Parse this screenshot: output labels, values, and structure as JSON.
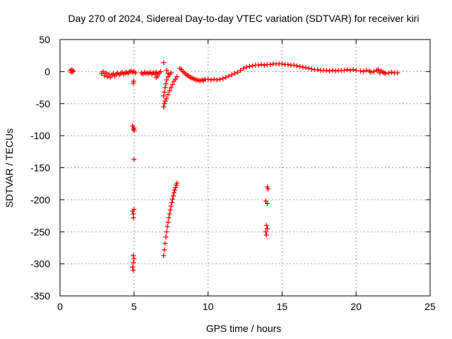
{
  "chart_data": {
    "type": "scatter",
    "title": "Day 270 of 2024, Sidereal Day-to-day VTEC variation (SDTVAR) for receiver kiri",
    "xlabel": "GPS time / hours",
    "ylabel": "SDTVAR / TECUs",
    "xlim": [
      0,
      25
    ],
    "ylim": [
      -350,
      50
    ],
    "xticks": [
      0,
      5,
      10,
      15,
      20,
      25
    ],
    "yticks": [
      50,
      0,
      -50,
      -100,
      -150,
      -200,
      -250,
      -300,
      -350
    ],
    "xtick_labels": [
      "0",
      "5",
      "10",
      "15",
      "20",
      "25"
    ],
    "ytick_labels": [
      "50",
      "0",
      "-50",
      "-100",
      "-150",
      "-200",
      "-250",
      "-300",
      "-350"
    ],
    "grid": true,
    "marker": "+",
    "color": "#ff0000",
    "series": [
      {
        "name": "SDTVAR",
        "points": [
          [
            0.7,
            2
          ],
          [
            0.75,
            -1
          ],
          [
            0.8,
            3
          ],
          [
            0.85,
            0
          ],
          [
            0.9,
            1
          ],
          [
            2.8,
            -3
          ],
          [
            2.9,
            0
          ],
          [
            3.0,
            -6
          ],
          [
            3.1,
            -2
          ],
          [
            3.2,
            -8
          ],
          [
            3.3,
            -4
          ],
          [
            3.4,
            -9
          ],
          [
            3.5,
            -5
          ],
          [
            3.6,
            -3
          ],
          [
            3.7,
            -7
          ],
          [
            3.8,
            -4
          ],
          [
            3.9,
            -2
          ],
          [
            4.0,
            -5
          ],
          [
            4.1,
            -3
          ],
          [
            4.2,
            -1
          ],
          [
            4.3,
            -4
          ],
          [
            4.4,
            -2
          ],
          [
            4.5,
            -1
          ],
          [
            4.6,
            -3
          ],
          [
            4.7,
            0
          ],
          [
            4.8,
            1
          ],
          [
            4.9,
            -1
          ],
          [
            5.0,
            0
          ],
          [
            5.1,
            -2
          ],
          [
            4.95,
            -18
          ],
          [
            4.98,
            -15
          ],
          [
            4.9,
            -85
          ],
          [
            4.95,
            -90
          ],
          [
            5.0,
            -88
          ],
          [
            5.02,
            -92
          ],
          [
            5.0,
            -137
          ],
          [
            4.9,
            -218
          ],
          [
            4.95,
            -222
          ],
          [
            5.0,
            -215
          ],
          [
            4.95,
            -228
          ],
          [
            4.95,
            -287
          ],
          [
            5.0,
            -292
          ],
          [
            4.95,
            -298
          ],
          [
            4.9,
            -305
          ],
          [
            4.95,
            -310
          ],
          [
            5.5,
            -2
          ],
          [
            5.6,
            -4
          ],
          [
            5.7,
            -1
          ],
          [
            5.8,
            -3
          ],
          [
            5.9,
            -2
          ],
          [
            6.0,
            -3
          ],
          [
            6.1,
            -1
          ],
          [
            6.2,
            -4
          ],
          [
            6.3,
            -2
          ],
          [
            6.4,
            -3
          ],
          [
            6.5,
            -1
          ],
          [
            6.6,
            -4
          ],
          [
            6.7,
            -2
          ],
          [
            6.8,
            0
          ],
          [
            6.5,
            -9
          ],
          [
            6.6,
            -7
          ],
          [
            7.0,
            14
          ],
          [
            7.2,
            2
          ],
          [
            7.3,
            -3
          ],
          [
            7.0,
            -38
          ],
          [
            7.05,
            -32
          ],
          [
            7.1,
            -25
          ],
          [
            7.15,
            -19
          ],
          [
            7.2,
            -13
          ],
          [
            7.3,
            -8
          ],
          [
            7.4,
            -5
          ],
          [
            7.5,
            -2
          ],
          [
            7.0,
            -55
          ],
          [
            7.05,
            -50
          ],
          [
            7.1,
            -46
          ],
          [
            7.2,
            -42
          ],
          [
            7.3,
            -36
          ],
          [
            7.4,
            -30
          ],
          [
            7.5,
            -25
          ],
          [
            7.6,
            -20
          ],
          [
            7.7,
            -15
          ],
          [
            7.8,
            -12
          ],
          [
            7.9,
            -8
          ],
          [
            7.0,
            -287
          ],
          [
            7.05,
            -278
          ],
          [
            7.1,
            -268
          ],
          [
            7.15,
            -258
          ],
          [
            7.2,
            -250
          ],
          [
            7.25,
            -242
          ],
          [
            7.3,
            -235
          ],
          [
            7.35,
            -228
          ],
          [
            7.4,
            -222
          ],
          [
            7.45,
            -216
          ],
          [
            7.5,
            -210
          ],
          [
            7.55,
            -204
          ],
          [
            7.6,
            -199
          ],
          [
            7.65,
            -194
          ],
          [
            7.7,
            -189
          ],
          [
            7.75,
            -185
          ],
          [
            7.8,
            -181
          ],
          [
            7.85,
            -177
          ],
          [
            7.9,
            -174
          ],
          [
            8.1,
            5
          ],
          [
            8.2,
            3
          ],
          [
            8.3,
            0
          ],
          [
            8.4,
            -2
          ],
          [
            8.5,
            -4
          ],
          [
            8.6,
            -6
          ],
          [
            8.7,
            -7
          ],
          [
            8.8,
            -9
          ],
          [
            8.9,
            -10
          ],
          [
            9.0,
            -11
          ],
          [
            9.1,
            -12
          ],
          [
            9.2,
            -13
          ],
          [
            9.3,
            -13
          ],
          [
            9.4,
            -14
          ],
          [
            9.5,
            -14
          ],
          [
            9.6,
            -13
          ],
          [
            9.7,
            -14
          ],
          [
            9.8,
            -12
          ],
          [
            10.0,
            -12
          ],
          [
            10.2,
            -13
          ],
          [
            10.4,
            -12
          ],
          [
            10.6,
            -13
          ],
          [
            10.8,
            -12
          ],
          [
            11.0,
            -11
          ],
          [
            11.2,
            -9
          ],
          [
            11.4,
            -7
          ],
          [
            11.6,
            -5
          ],
          [
            11.8,
            -3
          ],
          [
            12.0,
            -1
          ],
          [
            12.2,
            2
          ],
          [
            12.4,
            5
          ],
          [
            12.6,
            7
          ],
          [
            12.8,
            8
          ],
          [
            13.0,
            9
          ],
          [
            13.2,
            10
          ],
          [
            13.4,
            10
          ],
          [
            13.6,
            11
          ],
          [
            13.8,
            10
          ],
          [
            14.0,
            11
          ],
          [
            14.2,
            11
          ],
          [
            14.4,
            12
          ],
          [
            14.6,
            12
          ],
          [
            14.8,
            12
          ],
          [
            15.0,
            12
          ],
          [
            15.2,
            11
          ],
          [
            15.4,
            11
          ],
          [
            15.6,
            10
          ],
          [
            15.8,
            10
          ],
          [
            16.0,
            9
          ],
          [
            16.2,
            8
          ],
          [
            16.4,
            7
          ],
          [
            16.6,
            6
          ],
          [
            16.8,
            5
          ],
          [
            17.0,
            4
          ],
          [
            14.0,
            -180
          ],
          [
            14.05,
            -183
          ],
          [
            13.9,
            -202
          ],
          [
            14.0,
            -206
          ],
          [
            13.95,
            -240
          ],
          [
            14.0,
            -245
          ],
          [
            13.9,
            -250
          ],
          [
            13.95,
            -255
          ],
          [
            17.2,
            3
          ],
          [
            17.4,
            3
          ],
          [
            17.6,
            2
          ],
          [
            17.8,
            2
          ],
          [
            18.0,
            2
          ],
          [
            18.2,
            1
          ],
          [
            18.4,
            2
          ],
          [
            18.6,
            1
          ],
          [
            18.8,
            2
          ],
          [
            19.0,
            2
          ],
          [
            19.2,
            2
          ],
          [
            19.4,
            3
          ],
          [
            19.6,
            2
          ],
          [
            19.8,
            3
          ],
          [
            20.0,
            2
          ],
          [
            20.3,
            1
          ],
          [
            20.5,
            0
          ],
          [
            20.7,
            2
          ],
          [
            20.9,
            1
          ],
          [
            21.0,
            -1
          ],
          [
            21.2,
            0
          ],
          [
            21.4,
            2
          ],
          [
            21.5,
            3
          ],
          [
            21.6,
            -2
          ],
          [
            21.7,
            1
          ],
          [
            21.8,
            -1
          ],
          [
            21.9,
            -2
          ],
          [
            22.0,
            -3
          ],
          [
            22.2,
            -2
          ],
          [
            22.4,
            -1
          ],
          [
            22.6,
            -2
          ],
          [
            22.8,
            -2
          ]
        ]
      }
    ]
  }
}
